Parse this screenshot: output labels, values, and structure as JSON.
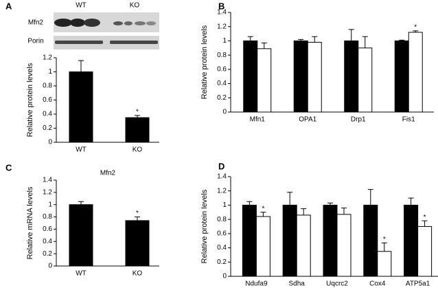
{
  "chart_data": [
    {
      "type": "bar",
      "panel": "A",
      "ylabel": "Relative protein levels",
      "blot": {
        "groups": [
          "WT",
          "KO"
        ],
        "rows": [
          "Mfn2",
          "Porin"
        ]
      },
      "categories": [
        "WT",
        "KO"
      ],
      "series": [
        {
          "color": "#000000",
          "values": [
            1,
            0.35
          ],
          "errors": [
            0.16,
            0.03
          ],
          "significance": [
            null,
            "*"
          ]
        }
      ],
      "ylim": [
        0,
        1.2
      ],
      "yticks": [
        0,
        0.2,
        0.4,
        0.6,
        0.8,
        1,
        1.2
      ]
    },
    {
      "type": "bar",
      "panel": "B",
      "ylabel": "Relative protein levels",
      "categories": [
        "Mfn1",
        "OPA1",
        "Drp1",
        "Fis1"
      ],
      "series": [
        {
          "color": "#000000",
          "values": [
            1,
            1,
            1,
            1
          ],
          "errors": [
            0.06,
            0.02,
            0.16,
            0.01
          ],
          "significance": [
            null,
            null,
            null,
            null
          ]
        },
        {
          "color": "#ffffff",
          "values": [
            0.89,
            0.98,
            0.9,
            1.12
          ],
          "errors": [
            0.08,
            0.08,
            0.16,
            0.02
          ],
          "significance": [
            null,
            null,
            null,
            "*"
          ]
        }
      ],
      "ylim": [
        0,
        1.4
      ],
      "yticks": [
        0,
        0.2,
        0.4,
        0.6,
        0.8,
        1,
        1.2,
        1.4
      ]
    },
    {
      "type": "bar",
      "panel": "C",
      "title": "Mfn2",
      "ylabel": "Relative mRNA levels",
      "categories": [
        "WT",
        "KO"
      ],
      "series": [
        {
          "color": "#000000",
          "values": [
            1,
            0.74
          ],
          "errors": [
            0.05,
            0.06
          ],
          "significance": [
            null,
            "*"
          ]
        }
      ],
      "ylim": [
        0,
        1.4
      ],
      "yticks": [
        0,
        0.2,
        0.4,
        0.6,
        0.8,
        1,
        1.2,
        1.4
      ]
    },
    {
      "type": "bar",
      "panel": "D",
      "ylabel": "Relative protein levels",
      "categories": [
        "Ndufa9",
        "Sdha",
        "Uqcrc2",
        "Cox4",
        "ATP5a1"
      ],
      "series": [
        {
          "color": "#000000",
          "values": [
            1,
            1,
            1,
            1,
            1
          ],
          "errors": [
            0.05,
            0.18,
            0.03,
            0.22,
            0.1
          ],
          "significance": [
            null,
            null,
            null,
            null,
            null
          ]
        },
        {
          "color": "#ffffff",
          "values": [
            0.84,
            0.86,
            0.87,
            0.35,
            0.7
          ],
          "errors": [
            0.06,
            0.09,
            0.09,
            0.12,
            0.08
          ],
          "significance": [
            "*",
            null,
            null,
            "*",
            "*"
          ]
        }
      ],
      "ylim": [
        0,
        1.4
      ],
      "yticks": [
        0,
        0.2,
        0.4,
        0.6,
        0.8,
        1,
        1.2,
        1.4
      ]
    }
  ]
}
